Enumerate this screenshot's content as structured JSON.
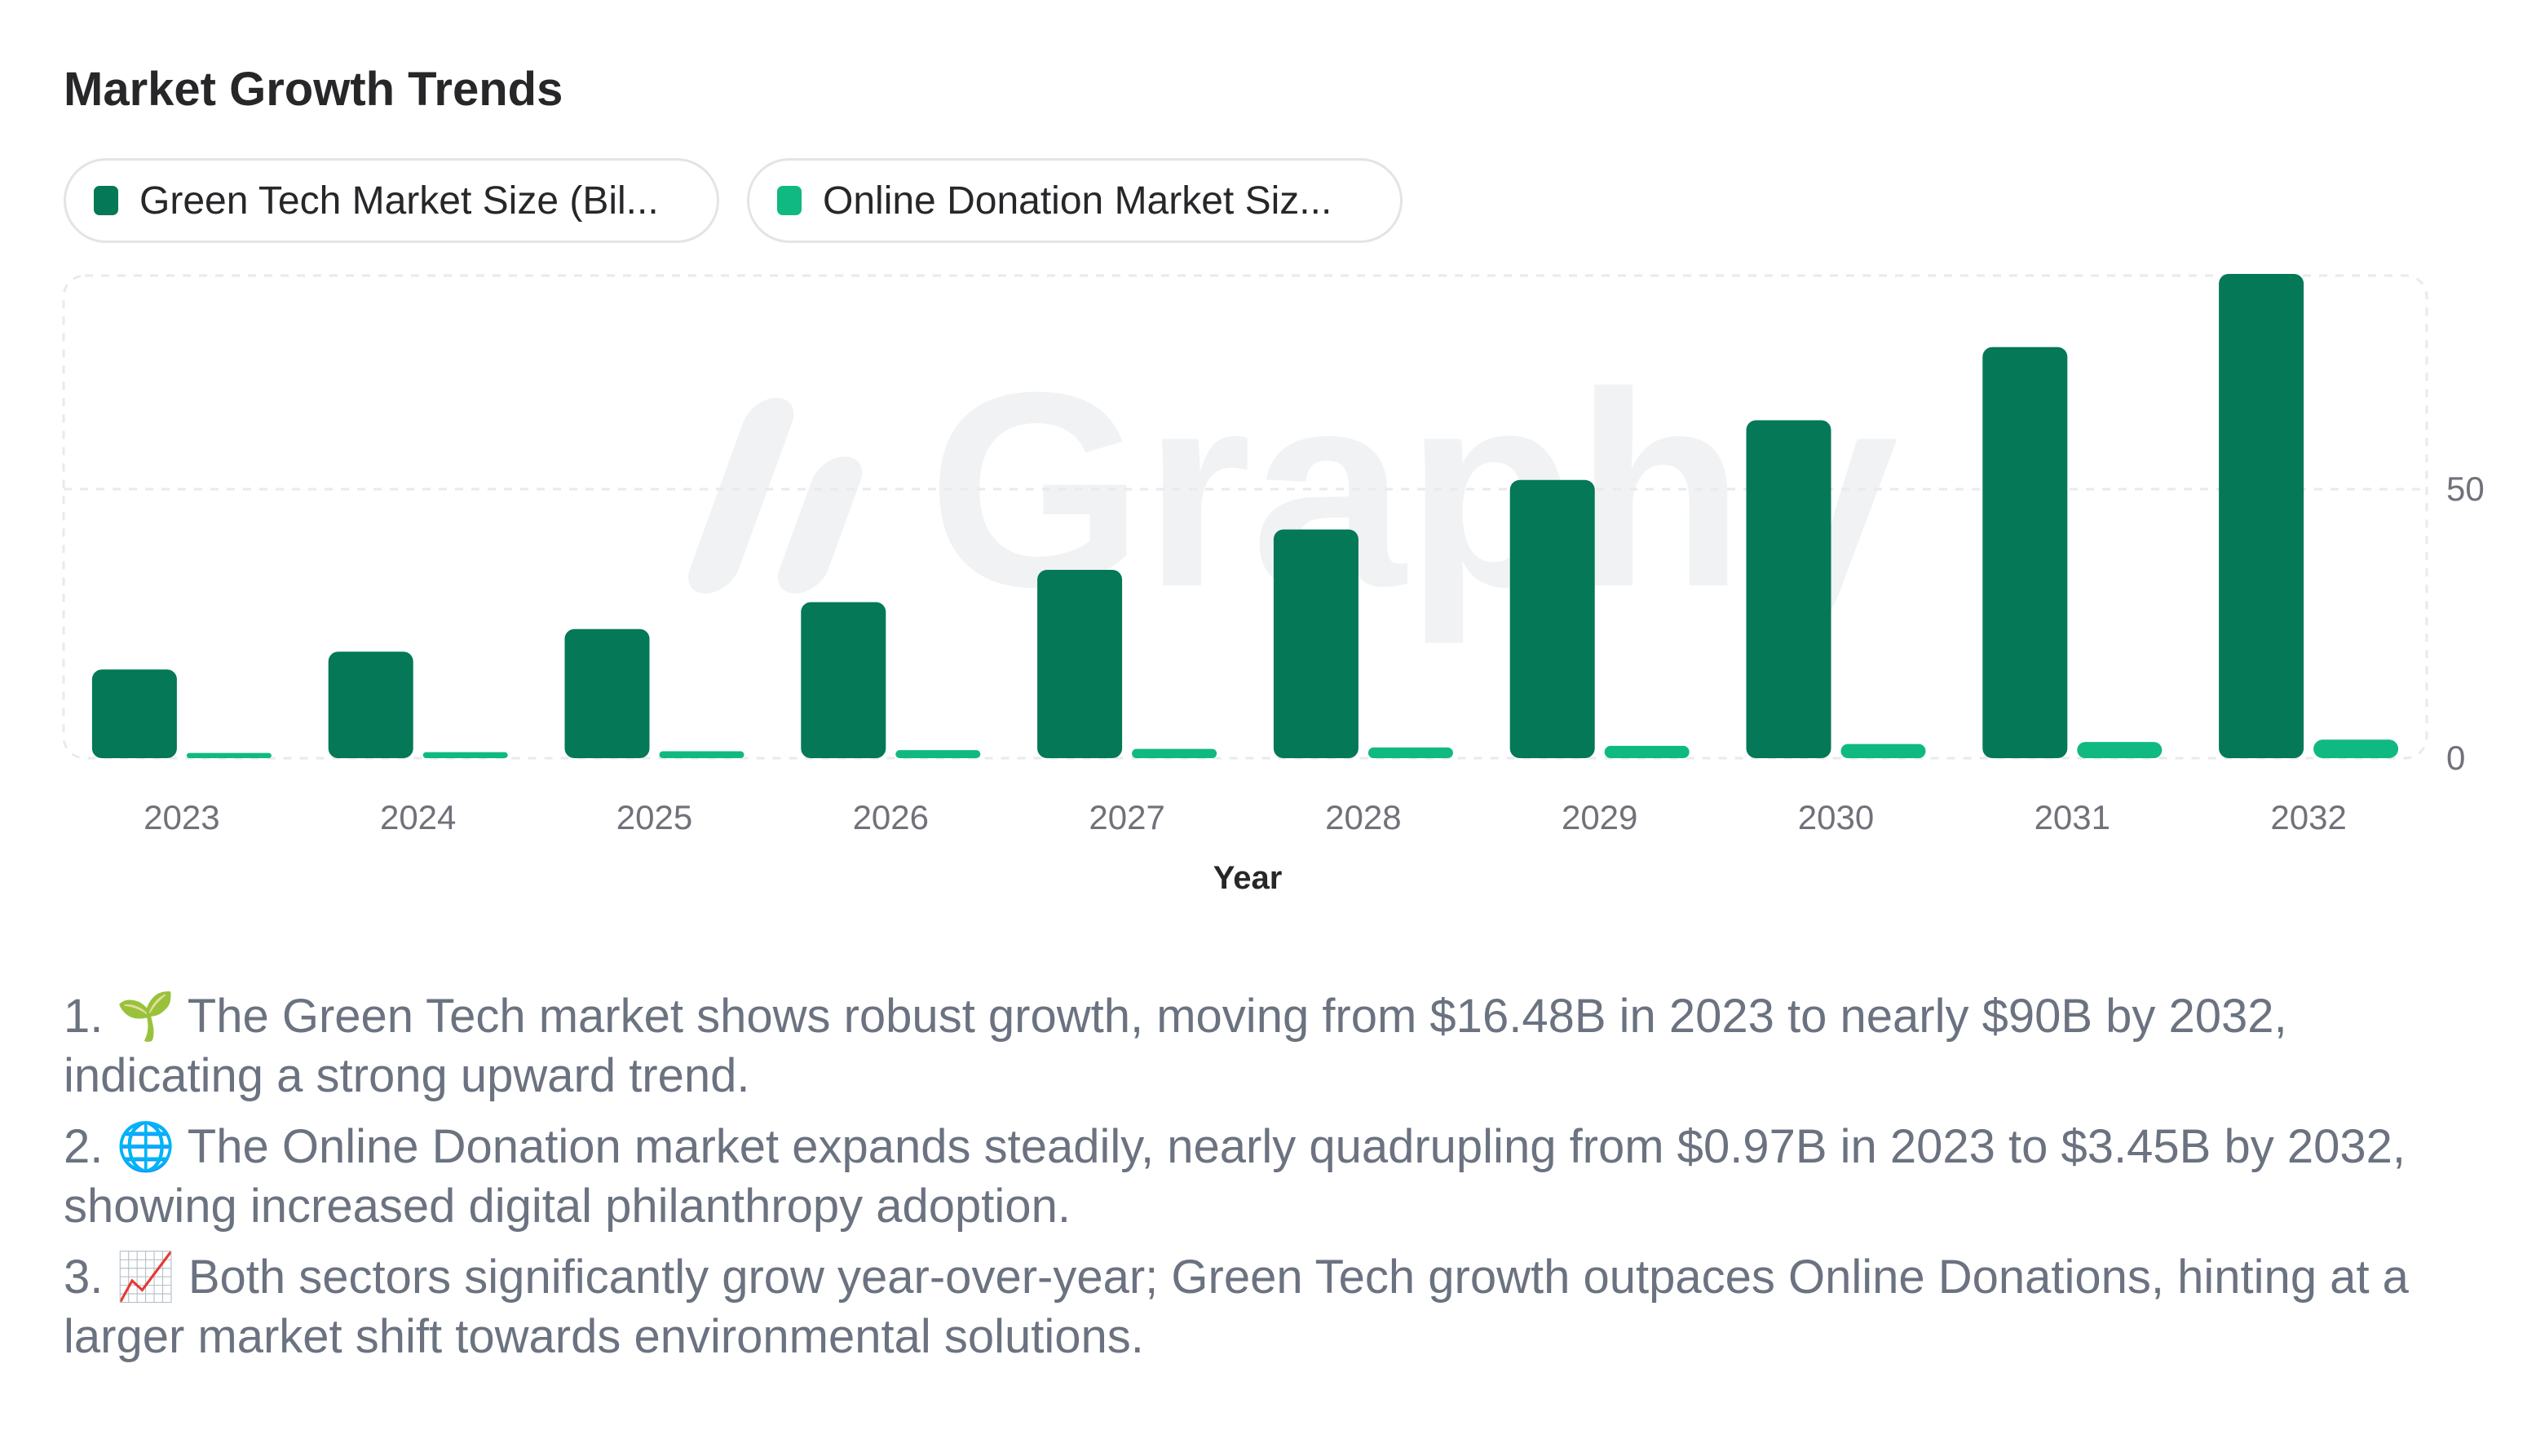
{
  "title": "Market Growth Trends",
  "legend": [
    {
      "label": "Green Tech Market Size (Bil...",
      "color": "#047857"
    },
    {
      "label": "Online Donation Market Siz...",
      "color": "#10b981"
    }
  ],
  "watermark": "Graphy",
  "chart_data": {
    "type": "bar",
    "title": "Market Growth Trends",
    "xlabel": "Year",
    "ylabel": "",
    "categories": [
      "2023",
      "2024",
      "2025",
      "2026",
      "2027",
      "2028",
      "2029",
      "2030",
      "2031",
      "2032"
    ],
    "series": [
      {
        "name": "Green Tech Market Size (Bil...",
        "color": "#047857",
        "values": [
          16.48,
          19.8,
          24.0,
          29.0,
          35.0,
          42.5,
          51.7,
          62.8,
          76.4,
          90.0
        ]
      },
      {
        "name": "Online Donation Market Siz...",
        "color": "#10b981",
        "values": [
          0.97,
          1.12,
          1.29,
          1.49,
          1.72,
          1.98,
          2.29,
          2.63,
          3.02,
          3.45
        ]
      }
    ],
    "yticks": [
      0,
      50
    ],
    "ylim": [
      0,
      90
    ],
    "grid": true,
    "legend_position": "top-left",
    "y_axis_side": "right"
  },
  "insights": [
    "1. 🌱 The Green Tech market shows robust growth, moving from $16.48B in 2023 to nearly $90B by 2032, indicating a strong upward trend.",
    "2. 🌐 The Online Donation market expands steadily, nearly quadrupling from $0.97B in 2023 to $3.45B by 2032, showing increased digital philanthropy adoption.",
    "3. 📈 Both sectors significantly grow year-over-year; Green Tech growth outpaces Online Donations, hinting at a larger market shift towards environmental solutions."
  ]
}
